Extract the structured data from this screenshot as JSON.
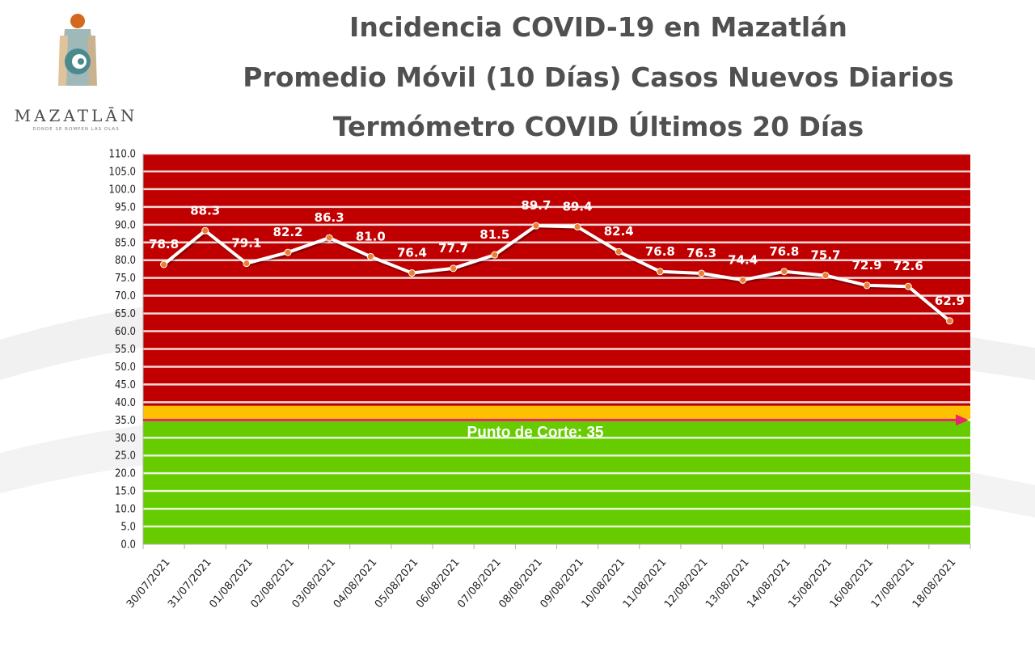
{
  "logo": {
    "name": "MAZATLĀN",
    "tagline": "DONDE SE ROMPEN LAS OLAS"
  },
  "titles": [
    "Incidencia COVID-19 en Mazatlán",
    "Promedio Móvil (10 Días) Casos Nuevos Diarios",
    "Termómetro COVID Últimos 20 Días"
  ],
  "colors": {
    "danger_zone": "#c00000",
    "warning_band": "#ffc000",
    "safe_zone": "#66cc00",
    "cut_line": "#e8246b",
    "line": "#ffffff",
    "marker": "#ed7d31"
  },
  "chart_data": {
    "type": "line",
    "x": [
      "30/07/2021",
      "31/07/2021",
      "01/08/2021",
      "02/08/2021",
      "03/08/2021",
      "04/08/2021",
      "05/08/2021",
      "06/08/2021",
      "07/08/2021",
      "08/08/2021",
      "09/08/2021",
      "10/08/2021",
      "11/08/2021",
      "12/08/2021",
      "13/08/2021",
      "14/08/2021",
      "15/08/2021",
      "16/08/2021",
      "17/08/2021",
      "18/08/2021"
    ],
    "values": [
      78.8,
      88.3,
      79.1,
      82.2,
      86.3,
      81.0,
      76.4,
      77.7,
      81.5,
      89.7,
      89.4,
      82.4,
      76.8,
      76.3,
      74.4,
      76.8,
      75.7,
      72.9,
      72.6,
      62.9
    ],
    "value_labels": [
      "78.8",
      "88.3",
      "79.1",
      "82.2",
      "86.3",
      "81.0",
      "76.4",
      "77.7",
      "81.5",
      "89.7",
      "89.4",
      "82.4",
      "76.8",
      "76.3",
      "74.4",
      "76.8",
      "75.7",
      "72.9",
      "72.6",
      "62.9"
    ],
    "ylim": [
      0,
      110
    ],
    "ytick_labels": [
      "0.0",
      "5.0",
      "10.0",
      "15.0",
      "20.0",
      "25.0",
      "30.0",
      "35.0",
      "40.0",
      "45.0",
      "50.0",
      "55.0",
      "60.0",
      "65.0",
      "70.0",
      "75.0",
      "80.0",
      "85.0",
      "90.0",
      "95.0",
      "100.0",
      "105.0",
      "110.0"
    ],
    "bands": [
      {
        "from": 0,
        "to": 35,
        "color": "#66cc00"
      },
      {
        "from": 35,
        "to": 39,
        "color": "#ffc000"
      },
      {
        "from": 39,
        "to": 110,
        "color": "#c00000"
      }
    ],
    "cutoff": {
      "value": 35,
      "label": "Punto de Corte: 35"
    },
    "grid": true
  }
}
